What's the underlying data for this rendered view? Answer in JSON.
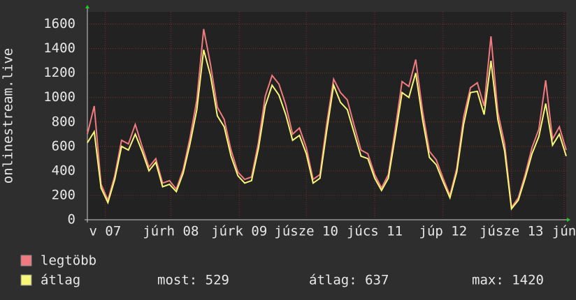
{
  "chart_data": {
    "type": "line",
    "y_label": "onlinestream.live",
    "x": [
      0,
      0.1,
      0.2,
      0.3,
      0.4,
      0.5,
      0.6,
      0.7,
      0.8,
      0.9,
      1,
      1.1,
      1.2,
      1.3,
      1.4,
      1.5,
      1.6,
      1.7,
      1.8,
      1.9,
      2,
      2.1,
      2.2,
      2.3,
      2.4,
      2.5,
      2.6,
      2.7,
      2.8,
      2.9,
      3,
      3.1,
      3.2,
      3.3,
      3.4,
      3.5,
      3.6,
      3.7,
      3.8,
      3.9,
      4,
      4.1,
      4.2,
      4.3,
      4.4,
      4.5,
      4.6,
      4.7,
      4.8,
      4.9,
      5,
      5.1,
      5.2,
      5.3,
      5.4,
      5.5,
      5.6,
      5.7,
      5.8,
      5.9,
      6,
      6.1,
      6.2,
      6.3,
      6.4,
      6.5,
      6.6,
      6.7,
      6.8,
      6.9,
      7
    ],
    "series": [
      {
        "name": "legtöbb",
        "color": "#f07a7f",
        "values": [
          700,
          930,
          290,
          160,
          360,
          650,
          620,
          780,
          600,
          430,
          500,
          300,
          320,
          250,
          410,
          670,
          980,
          1560,
          1270,
          920,
          820,
          570,
          390,
          330,
          350,
          630,
          1010,
          1180,
          1110,
          940,
          700,
          750,
          590,
          330,
          370,
          790,
          1150,
          1040,
          980,
          770,
          570,
          540,
          370,
          260,
          370,
          740,
          1130,
          1090,
          1310,
          890,
          560,
          490,
          340,
          200,
          420,
          840,
          1080,
          1120,
          930,
          1500,
          880,
          620,
          100,
          180,
          370,
          590,
          740,
          1140,
          660,
          760,
          570
        ]
      },
      {
        "name": "átlag",
        "color": "#f8f878",
        "values": [
          630,
          720,
          260,
          140,
          330,
          600,
          570,
          700,
          560,
          400,
          470,
          270,
          290,
          230,
          380,
          620,
          900,
          1390,
          1180,
          850,
          760,
          520,
          360,
          300,
          320,
          580,
          930,
          1100,
          1020,
          860,
          650,
          690,
          540,
          300,
          340,
          730,
          1100,
          960,
          900,
          710,
          520,
          500,
          340,
          240,
          340,
          680,
          1040,
          1000,
          1200,
          820,
          510,
          450,
          310,
          180,
          390,
          780,
          1040,
          1050,
          860,
          1300,
          820,
          560,
          90,
          160,
          340,
          540,
          680,
          950,
          610,
          700,
          520
        ]
      }
    ],
    "xlim": [
      0,
      7
    ],
    "xticks": [
      {
        "value": 0.26,
        "label": "v 07"
      },
      {
        "value": 1.22,
        "label": "júrh 08"
      },
      {
        "value": 2.22,
        "label": "júrk 09"
      },
      {
        "value": 3.2,
        "label": "júsze 10"
      },
      {
        "value": 4.2,
        "label": "júcs 11"
      },
      {
        "value": 5.2,
        "label": "júp 12"
      },
      {
        "value": 6.2,
        "label": "júsze 13"
      },
      {
        "value": 6.97,
        "label": "jún"
      }
    ],
    "ylim": [
      0,
      1700
    ],
    "yticks": [
      0,
      200,
      400,
      600,
      800,
      1000,
      1200,
      1400,
      1600
    ],
    "grid": true,
    "legend_position": "bottom-left",
    "stats": [
      "most: 529",
      "átlag: 637",
      "max: 1420"
    ]
  }
}
